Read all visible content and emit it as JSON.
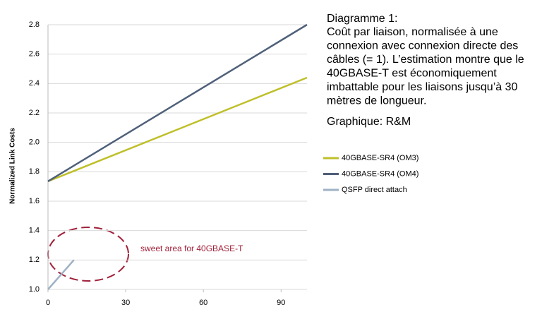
{
  "chart_data": {
    "type": "line",
    "title": "Diagramme 1:",
    "subtitle_lines": [
      "Coût par liaison, normalisée à une",
      "connexion avec connexion directe des",
      "câbles (= 1). L’estimation montre que le",
      "40GBASE-T est économiquement",
      "imbattable pour les liaisons jusqu’à 30",
      "mètres de longueur."
    ],
    "credit": "Graphique: R&M",
    "y_label": "Normalized Link Costs",
    "annotation": "sweet area for 40GBASE-T",
    "series": [
      {
        "name": "40GBASE-SR4 (OM3)",
        "color": "#bfbf2a",
        "x": [
          0,
          100
        ],
        "values": [
          1.735,
          2.44
        ]
      },
      {
        "name": "40GBASE-SR4 (OM4)",
        "color": "#4f6079",
        "x": [
          0,
          100
        ],
        "values": [
          1.735,
          2.8
        ]
      },
      {
        "name": "QSFP direct attach",
        "color": "#9eb2c6",
        "x": [
          0,
          10
        ],
        "values": [
          1.0,
          1.2
        ]
      }
    ],
    "xlim": [
      0,
      100
    ],
    "xticks": [
      0,
      30,
      60,
      90
    ],
    "ylim": [
      1.0,
      2.8
    ],
    "yticks": [
      {
        "value": 1.0,
        "label": "1.0"
      },
      1.2,
      1.4,
      1.6,
      1.8,
      {
        "value": 2.0,
        "label": "2.0"
      },
      2.2,
      2.4,
      2.6,
      2.8
    ],
    "grid": true
  }
}
